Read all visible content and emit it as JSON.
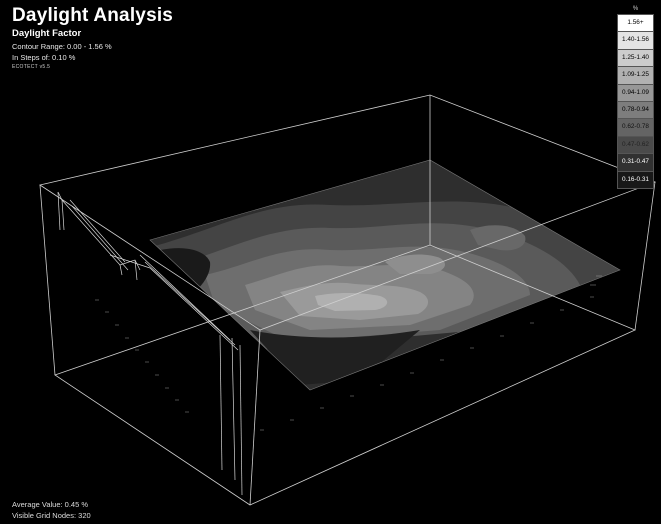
{
  "header": {
    "title": "Daylight Analysis",
    "subtitle": "Daylight Factor",
    "contour_range": "Contour Range: 0.00 - 1.56 %",
    "steps": "In Steps of: 0.10 %",
    "tag": "ECOTECT v5.5"
  },
  "legend": {
    "unit": "%",
    "items": [
      {
        "label": "1.56+",
        "fill": "#ffffff",
        "text": "#000000"
      },
      {
        "label": "1.40-1.56",
        "fill": "#e4e4e4",
        "text": "#000000"
      },
      {
        "label": "1.25-1.40",
        "fill": "#cccccc",
        "text": "#000000"
      },
      {
        "label": "1.09-1.25",
        "fill": "#b1b1b1",
        "text": "#000000"
      },
      {
        "label": "0.94-1.09",
        "fill": "#979797",
        "text": "#000000"
      },
      {
        "label": "0.78-0.94",
        "fill": "#7d7d7d",
        "text": "#000000"
      },
      {
        "label": "0.62-0.78",
        "fill": "#646464",
        "text": "#111111"
      },
      {
        "label": "0.47-0.62",
        "fill": "#4a4a4a",
        "text": "#222222"
      },
      {
        "label": "0.31-0.47",
        "fill": "#313131",
        "text": "#ffffff"
      },
      {
        "label": "0.16-0.31",
        "fill": "#181818",
        "text": "#ffffff"
      }
    ]
  },
  "stats": {
    "average": "Average Value: 0.45 %",
    "nodes": "Visible Grid Nodes: 320"
  },
  "colors": {
    "background": "#000000",
    "wireframe": "#cfcfcf",
    "contour_levels": [
      "#181818",
      "#313131",
      "#4a4a4a",
      "#646464",
      "#7d7d7d",
      "#979797",
      "#b1b1b1"
    ]
  }
}
